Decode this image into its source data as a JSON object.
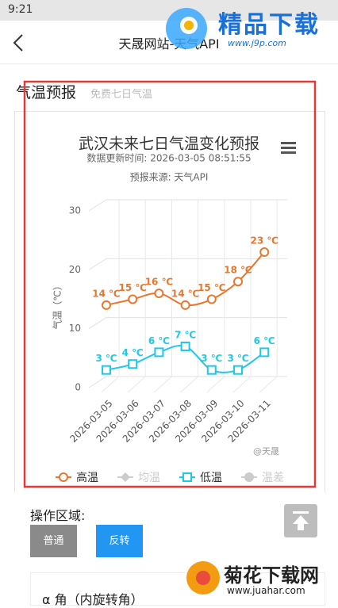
{
  "status_bar": {
    "time": "9:21"
  },
  "header": {
    "title": "天晟网站-天气API"
  },
  "watermark_top": {
    "brand": "精品下载",
    "url": "www.j9p.com"
  },
  "section": {
    "title": "气温预报",
    "subtitle": "免费七日气温"
  },
  "chart_data": {
    "type": "line",
    "title": "武汉未来七日气温变化预报",
    "subtitle": "数据更新时间: 2026-03-05 08:51:55",
    "source": "预报来源: 天气API",
    "y_label": "气温（℃）",
    "credits": "@天晟",
    "categories": [
      "2026-03-05",
      "2026-03-06",
      "2026-03-07",
      "2026-03-08",
      "2026-03-09",
      "2026-03-10",
      "2026-03-11"
    ],
    "series": [
      {
        "name": "高温",
        "color": "#e8762d",
        "marker": "circle",
        "values": [
          14,
          15,
          16,
          14,
          15,
          18,
          23
        ],
        "value_labels": [
          "14 ℃",
          "15 ℃",
          "16 ℃",
          "14 ℃",
          "15 ℃",
          "18 ℃",
          "23 ℃"
        ]
      },
      {
        "name": "均温",
        "color": "#cccccc",
        "marker": "diamond",
        "visible": false
      },
      {
        "name": "低温",
        "color": "#1ec8e6",
        "marker": "square",
        "values": [
          3,
          4,
          6,
          7,
          3,
          3,
          6
        ],
        "value_labels": [
          "3 ℃",
          "4 ℃",
          "6 ℃",
          "7 ℃",
          "3 ℃",
          "3 ℃",
          "6 ℃"
        ]
      },
      {
        "name": "温差",
        "color": "#cccccc",
        "marker": "dot",
        "visible": false
      }
    ],
    "ylim": [
      0,
      30
    ],
    "yticks": [
      0,
      10,
      20,
      30
    ],
    "grid": true
  },
  "controls": {
    "label": "操作区域:",
    "buttons": [
      "普通",
      "反转"
    ],
    "item": "α 角（内旋转角）"
  },
  "watermark_bottom": {
    "brand": "菊花下载网",
    "url": "www.juahar.com"
  }
}
